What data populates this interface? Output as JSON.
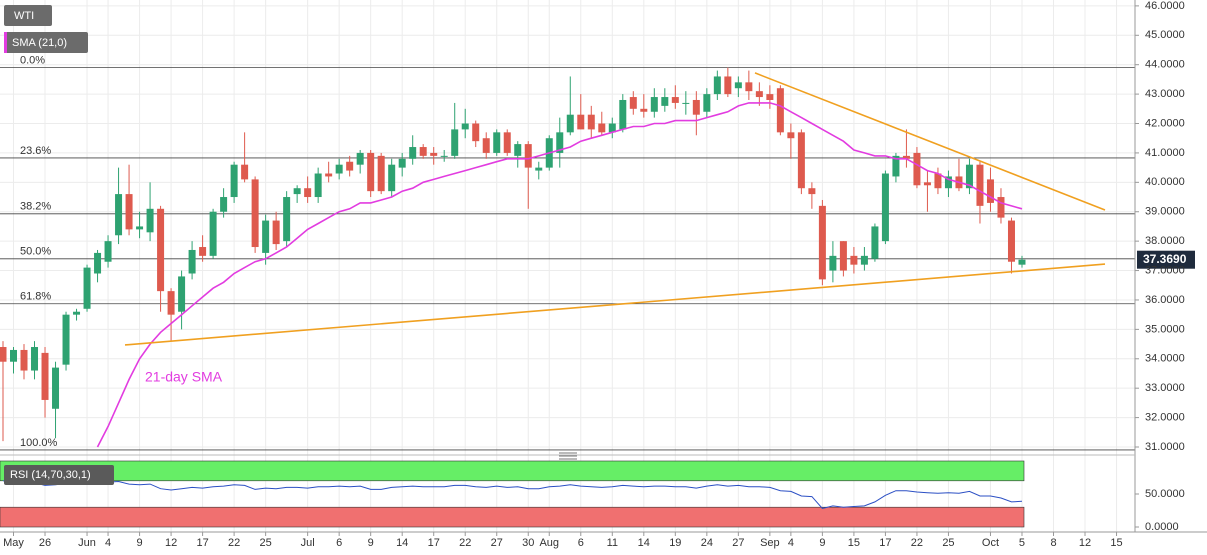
{
  "chart_data": {
    "type": "candlestick",
    "symbol": "WTI",
    "indicator_label": "SMA (21,0)",
    "annotation": "21-day SMA",
    "up_color": "#2ea271",
    "down_color": "#de5a4e",
    "sma_color": "#e23ce0",
    "trend_color": "#f0a020",
    "grid": true,
    "ylim": [
      30.83,
      46.2
    ],
    "yticks": [
      {
        "value": 31,
        "label": "31.0000"
      },
      {
        "value": 32,
        "label": "32.0000"
      },
      {
        "value": 33,
        "label": "33.0000"
      },
      {
        "value": 34,
        "label": "34.0000"
      },
      {
        "value": 35,
        "label": "35.0000"
      },
      {
        "value": 36,
        "label": "36.0000"
      },
      {
        "value": 37,
        "label": "37.0000"
      },
      {
        "value": 38,
        "label": "38.0000"
      },
      {
        "value": 39,
        "label": "39.0000"
      },
      {
        "value": 40,
        "label": "40.0000"
      },
      {
        "value": 41,
        "label": "41.0000"
      },
      {
        "value": 42,
        "label": "42.0000"
      },
      {
        "value": 43,
        "label": "43.0000"
      },
      {
        "value": 44,
        "label": "44.0000"
      },
      {
        "value": 45,
        "label": "45.0000"
      },
      {
        "value": 46,
        "label": "46.0000"
      }
    ],
    "categories": [
      null,
      "May",
      null,
      null,
      "26",
      null,
      null,
      null,
      "Jun",
      null,
      "4",
      null,
      null,
      "9",
      null,
      null,
      "12",
      null,
      null,
      "17",
      null,
      null,
      "22",
      null,
      null,
      "25",
      null,
      null,
      null,
      "Jul",
      null,
      null,
      "6",
      null,
      null,
      "9",
      null,
      null,
      "14",
      null,
      null,
      "17",
      null,
      null,
      "22",
      null,
      null,
      "27",
      null,
      null,
      "30",
      null,
      "Aug",
      null,
      null,
      "6",
      null,
      null,
      "11",
      null,
      null,
      "14",
      null,
      null,
      "19",
      null,
      null,
      "24",
      null,
      null,
      "27",
      null,
      null,
      "Sep",
      null,
      "4",
      null,
      null,
      "9",
      null,
      null,
      "15",
      null,
      null,
      "17",
      null,
      null,
      "22",
      null,
      null,
      "25",
      null,
      null,
      null,
      "Oct",
      null,
      null,
      "5",
      null,
      null,
      "8",
      null,
      null,
      "12",
      null,
      null,
      "15",
      null
    ],
    "ohlc": [
      [
        34.4,
        34.6,
        31.2,
        33.9
      ],
      [
        33.9,
        34.4,
        33.5,
        34.3
      ],
      [
        34.3,
        34.5,
        33.3,
        33.6
      ],
      [
        33.6,
        34.6,
        33.3,
        34.4
      ],
      [
        34.2,
        34.4,
        32.0,
        32.6
      ],
      [
        32.3,
        33.9,
        31.3,
        33.7
      ],
      [
        33.8,
        35.6,
        33.6,
        35.5
      ],
      [
        35.5,
        35.7,
        35.3,
        35.6
      ],
      [
        35.7,
        37.2,
        35.6,
        37.1
      ],
      [
        36.9,
        37.7,
        36.6,
        37.6
      ],
      [
        37.3,
        38.2,
        37.1,
        38.0
      ],
      [
        38.2,
        40.5,
        37.9,
        39.6
      ],
      [
        39.6,
        40.6,
        38.2,
        38.4
      ],
      [
        38.4,
        39.0,
        38.1,
        38.5
      ],
      [
        38.3,
        40.0,
        38.0,
        39.1
      ],
      [
        39.1,
        39.2,
        35.6,
        36.3
      ],
      [
        36.3,
        36.4,
        34.6,
        35.5
      ],
      [
        35.6,
        37.0,
        35.0,
        36.8
      ],
      [
        36.9,
        38.0,
        36.7,
        37.7
      ],
      [
        37.8,
        38.2,
        37.3,
        37.5
      ],
      [
        37.5,
        39.1,
        37.4,
        39.0
      ],
      [
        39.0,
        39.8,
        38.8,
        39.5
      ],
      [
        39.5,
        40.7,
        39.3,
        40.6
      ],
      [
        40.6,
        41.7,
        40.0,
        40.1
      ],
      [
        40.1,
        40.2,
        37.6,
        37.8
      ],
      [
        37.6,
        38.9,
        37.2,
        38.7
      ],
      [
        38.7,
        39.0,
        37.7,
        37.9
      ],
      [
        38.0,
        39.7,
        37.8,
        39.5
      ],
      [
        39.6,
        39.9,
        39.3,
        39.8
      ],
      [
        39.8,
        40.2,
        39.3,
        39.5
      ],
      [
        39.5,
        40.5,
        39.3,
        40.3
      ],
      [
        40.3,
        40.7,
        40.0,
        40.2
      ],
      [
        40.3,
        40.8,
        40.1,
        40.6
      ],
      [
        40.7,
        40.9,
        40.2,
        40.4
      ],
      [
        40.6,
        41.1,
        40.3,
        41.0
      ],
      [
        41.0,
        41.1,
        39.5,
        39.7
      ],
      [
        40.9,
        41.0,
        39.6,
        39.7
      ],
      [
        39.7,
        40.8,
        39.5,
        40.6
      ],
      [
        40.5,
        41.0,
        40.2,
        40.8
      ],
      [
        40.8,
        41.6,
        40.6,
        41.2
      ],
      [
        41.2,
        41.3,
        40.8,
        40.9
      ],
      [
        41.0,
        41.2,
        40.6,
        40.9
      ],
      [
        40.9,
        41.1,
        40.7,
        40.9
      ],
      [
        40.9,
        42.7,
        40.8,
        41.8
      ],
      [
        41.8,
        42.5,
        41.5,
        42.0
      ],
      [
        42.0,
        42.1,
        41.2,
        41.4
      ],
      [
        41.5,
        41.7,
        40.8,
        41.0
      ],
      [
        41.0,
        41.8,
        40.9,
        41.7
      ],
      [
        41.7,
        41.8,
        40.9,
        41.0
      ],
      [
        40.9,
        41.4,
        40.5,
        41.3
      ],
      [
        41.3,
        41.4,
        39.1,
        40.5
      ],
      [
        40.4,
        40.7,
        40.1,
        40.5
      ],
      [
        40.5,
        41.6,
        40.4,
        41.5
      ],
      [
        41.0,
        42.2,
        40.5,
        41.7
      ],
      [
        41.7,
        43.6,
        41.6,
        42.3
      ],
      [
        42.3,
        43.0,
        41.8,
        41.8
      ],
      [
        42.3,
        42.6,
        41.5,
        41.8
      ],
      [
        42.0,
        42.4,
        41.6,
        41.7
      ],
      [
        41.7,
        42.2,
        41.5,
        42.0
      ],
      [
        41.8,
        43.0,
        41.7,
        42.8
      ],
      [
        42.9,
        43.1,
        42.3,
        42.5
      ],
      [
        42.5,
        43.0,
        42.2,
        42.4
      ],
      [
        42.4,
        43.2,
        42.2,
        42.9
      ],
      [
        42.6,
        43.2,
        42.4,
        42.9
      ],
      [
        42.9,
        43.3,
        42.5,
        42.7
      ],
      [
        42.7,
        43.1,
        42.3,
        42.7
      ],
      [
        42.8,
        43.1,
        41.6,
        42.3
      ],
      [
        42.4,
        43.2,
        42.2,
        43.0
      ],
      [
        43.0,
        43.8,
        42.8,
        43.6
      ],
      [
        43.6,
        43.9,
        42.9,
        43.0
      ],
      [
        43.2,
        43.6,
        42.9,
        43.4
      ],
      [
        43.4,
        43.8,
        42.8,
        43.1
      ],
      [
        43.1,
        43.4,
        42.6,
        42.9
      ],
      [
        43.0,
        43.3,
        42.5,
        42.8
      ],
      [
        43.2,
        43.3,
        41.6,
        41.7
      ],
      [
        41.7,
        42.0,
        40.8,
        41.5
      ],
      [
        41.7,
        41.8,
        39.6,
        39.8
      ],
      [
        39.8,
        40.0,
        39.1,
        39.6
      ],
      [
        39.2,
        39.4,
        36.5,
        36.7
      ],
      [
        37.0,
        38.0,
        36.6,
        37.5
      ],
      [
        38.0,
        38.0,
        36.8,
        37.0
      ],
      [
        37.5,
        37.8,
        36.9,
        37.2
      ],
      [
        37.2,
        37.8,
        37.0,
        37.5
      ],
      [
        37.4,
        38.6,
        37.3,
        38.5
      ],
      [
        38.0,
        40.4,
        37.9,
        40.3
      ],
      [
        40.2,
        41.0,
        40.0,
        40.9
      ],
      [
        40.9,
        41.8,
        40.5,
        40.8
      ],
      [
        41.0,
        41.2,
        39.8,
        39.9
      ],
      [
        40.0,
        40.4,
        39.0,
        39.9
      ],
      [
        40.3,
        40.5,
        39.6,
        39.8
      ],
      [
        39.8,
        40.4,
        39.5,
        40.2
      ],
      [
        40.2,
        40.8,
        39.7,
        39.8
      ],
      [
        39.8,
        40.8,
        39.6,
        40.6
      ],
      [
        40.6,
        40.7,
        38.6,
        39.2
      ],
      [
        40.1,
        40.5,
        39.0,
        39.3
      ],
      [
        39.5,
        39.8,
        38.6,
        38.8
      ],
      [
        38.7,
        38.8,
        36.9,
        37.3
      ],
      [
        37.2,
        37.5,
        37.1,
        37.369
      ],
      null,
      null,
      null,
      null,
      null,
      null,
      null,
      null,
      null,
      null
    ],
    "sma": [
      null,
      null,
      null,
      null,
      null,
      null,
      null,
      null,
      null,
      31.0,
      31.7,
      32.5,
      33.3,
      34.0,
      34.5,
      34.9,
      35.2,
      35.5,
      35.8,
      36.1,
      36.4,
      36.6,
      36.9,
      37.1,
      37.3,
      37.4,
      37.6,
      37.8,
      38.1,
      38.4,
      38.6,
      38.8,
      39.0,
      39.1,
      39.3,
      39.3,
      39.4,
      39.5,
      39.7,
      39.8,
      40.0,
      40.1,
      40.2,
      40.3,
      40.4,
      40.5,
      40.6,
      40.7,
      40.8,
      40.8,
      40.8,
      40.9,
      41.0,
      41.1,
      41.2,
      41.4,
      41.5,
      41.6,
      41.7,
      41.8,
      41.9,
      41.9,
      42.0,
      42.0,
      42.1,
      42.1,
      42.1,
      42.2,
      42.3,
      42.4,
      42.6,
      42.7,
      42.7,
      42.7,
      42.6,
      42.4,
      42.2,
      42.0,
      41.8,
      41.6,
      41.4,
      41.1,
      41.0,
      40.9,
      40.9,
      40.8,
      40.8,
      40.6,
      40.4,
      40.3,
      40.1,
      40.0,
      39.9,
      39.7,
      39.5,
      39.3,
      39.2,
      39.1,
      null,
      null,
      null,
      null,
      null,
      null,
      null,
      null,
      null,
      null
    ],
    "last_price": {
      "value": 37.369,
      "label": "37.3690"
    },
    "fib_levels": [
      {
        "label": "0.0%",
        "value": 43.9
      },
      {
        "label": "23.6%",
        "value": 40.83
      },
      {
        "label": "38.2%",
        "value": 38.93
      },
      {
        "label": "50.0%",
        "value": 37.4
      },
      {
        "label": "61.8%",
        "value": 35.87
      },
      {
        "label": "100.0%",
        "value": 30.9
      }
    ],
    "trendlines": [
      {
        "values": [
          34.47,
          37.22
        ]
      },
      {
        "values": [
          43.72,
          39.06
        ]
      }
    ],
    "rsi": {
      "label": "RSI (14,70,30,1)",
      "color": "#2b4fc4",
      "overbought": 70,
      "oversold": 30,
      "ylim": [
        0,
        100
      ],
      "yticks": [
        {
          "value": 50,
          "label": "50.0000"
        },
        {
          "value": 0,
          "label": "0.0000"
        }
      ],
      "values": [
        70,
        68,
        66,
        67,
        63,
        64,
        66,
        65,
        67,
        67,
        68,
        69,
        65,
        64,
        65,
        58,
        56,
        58,
        60,
        59,
        61,
        62,
        64,
        63,
        57,
        59,
        58,
        60,
        60,
        59,
        61,
        61,
        62,
        61,
        62,
        57,
        57,
        60,
        61,
        62,
        61,
        61,
        61,
        63,
        63,
        61,
        60,
        62,
        60,
        61,
        58,
        58,
        61,
        62,
        64,
        62,
        61,
        60,
        61,
        63,
        62,
        61,
        62,
        62,
        61,
        61,
        59,
        62,
        64,
        62,
        63,
        61,
        61,
        60,
        55,
        54,
        47,
        46,
        28,
        32,
        30,
        31,
        32,
        38,
        48,
        55,
        55,
        53,
        52,
        51,
        52,
        51,
        54,
        47,
        47,
        44,
        38,
        39,
        null,
        null,
        null,
        null,
        null,
        null,
        null,
        null,
        null,
        null
      ]
    }
  }
}
